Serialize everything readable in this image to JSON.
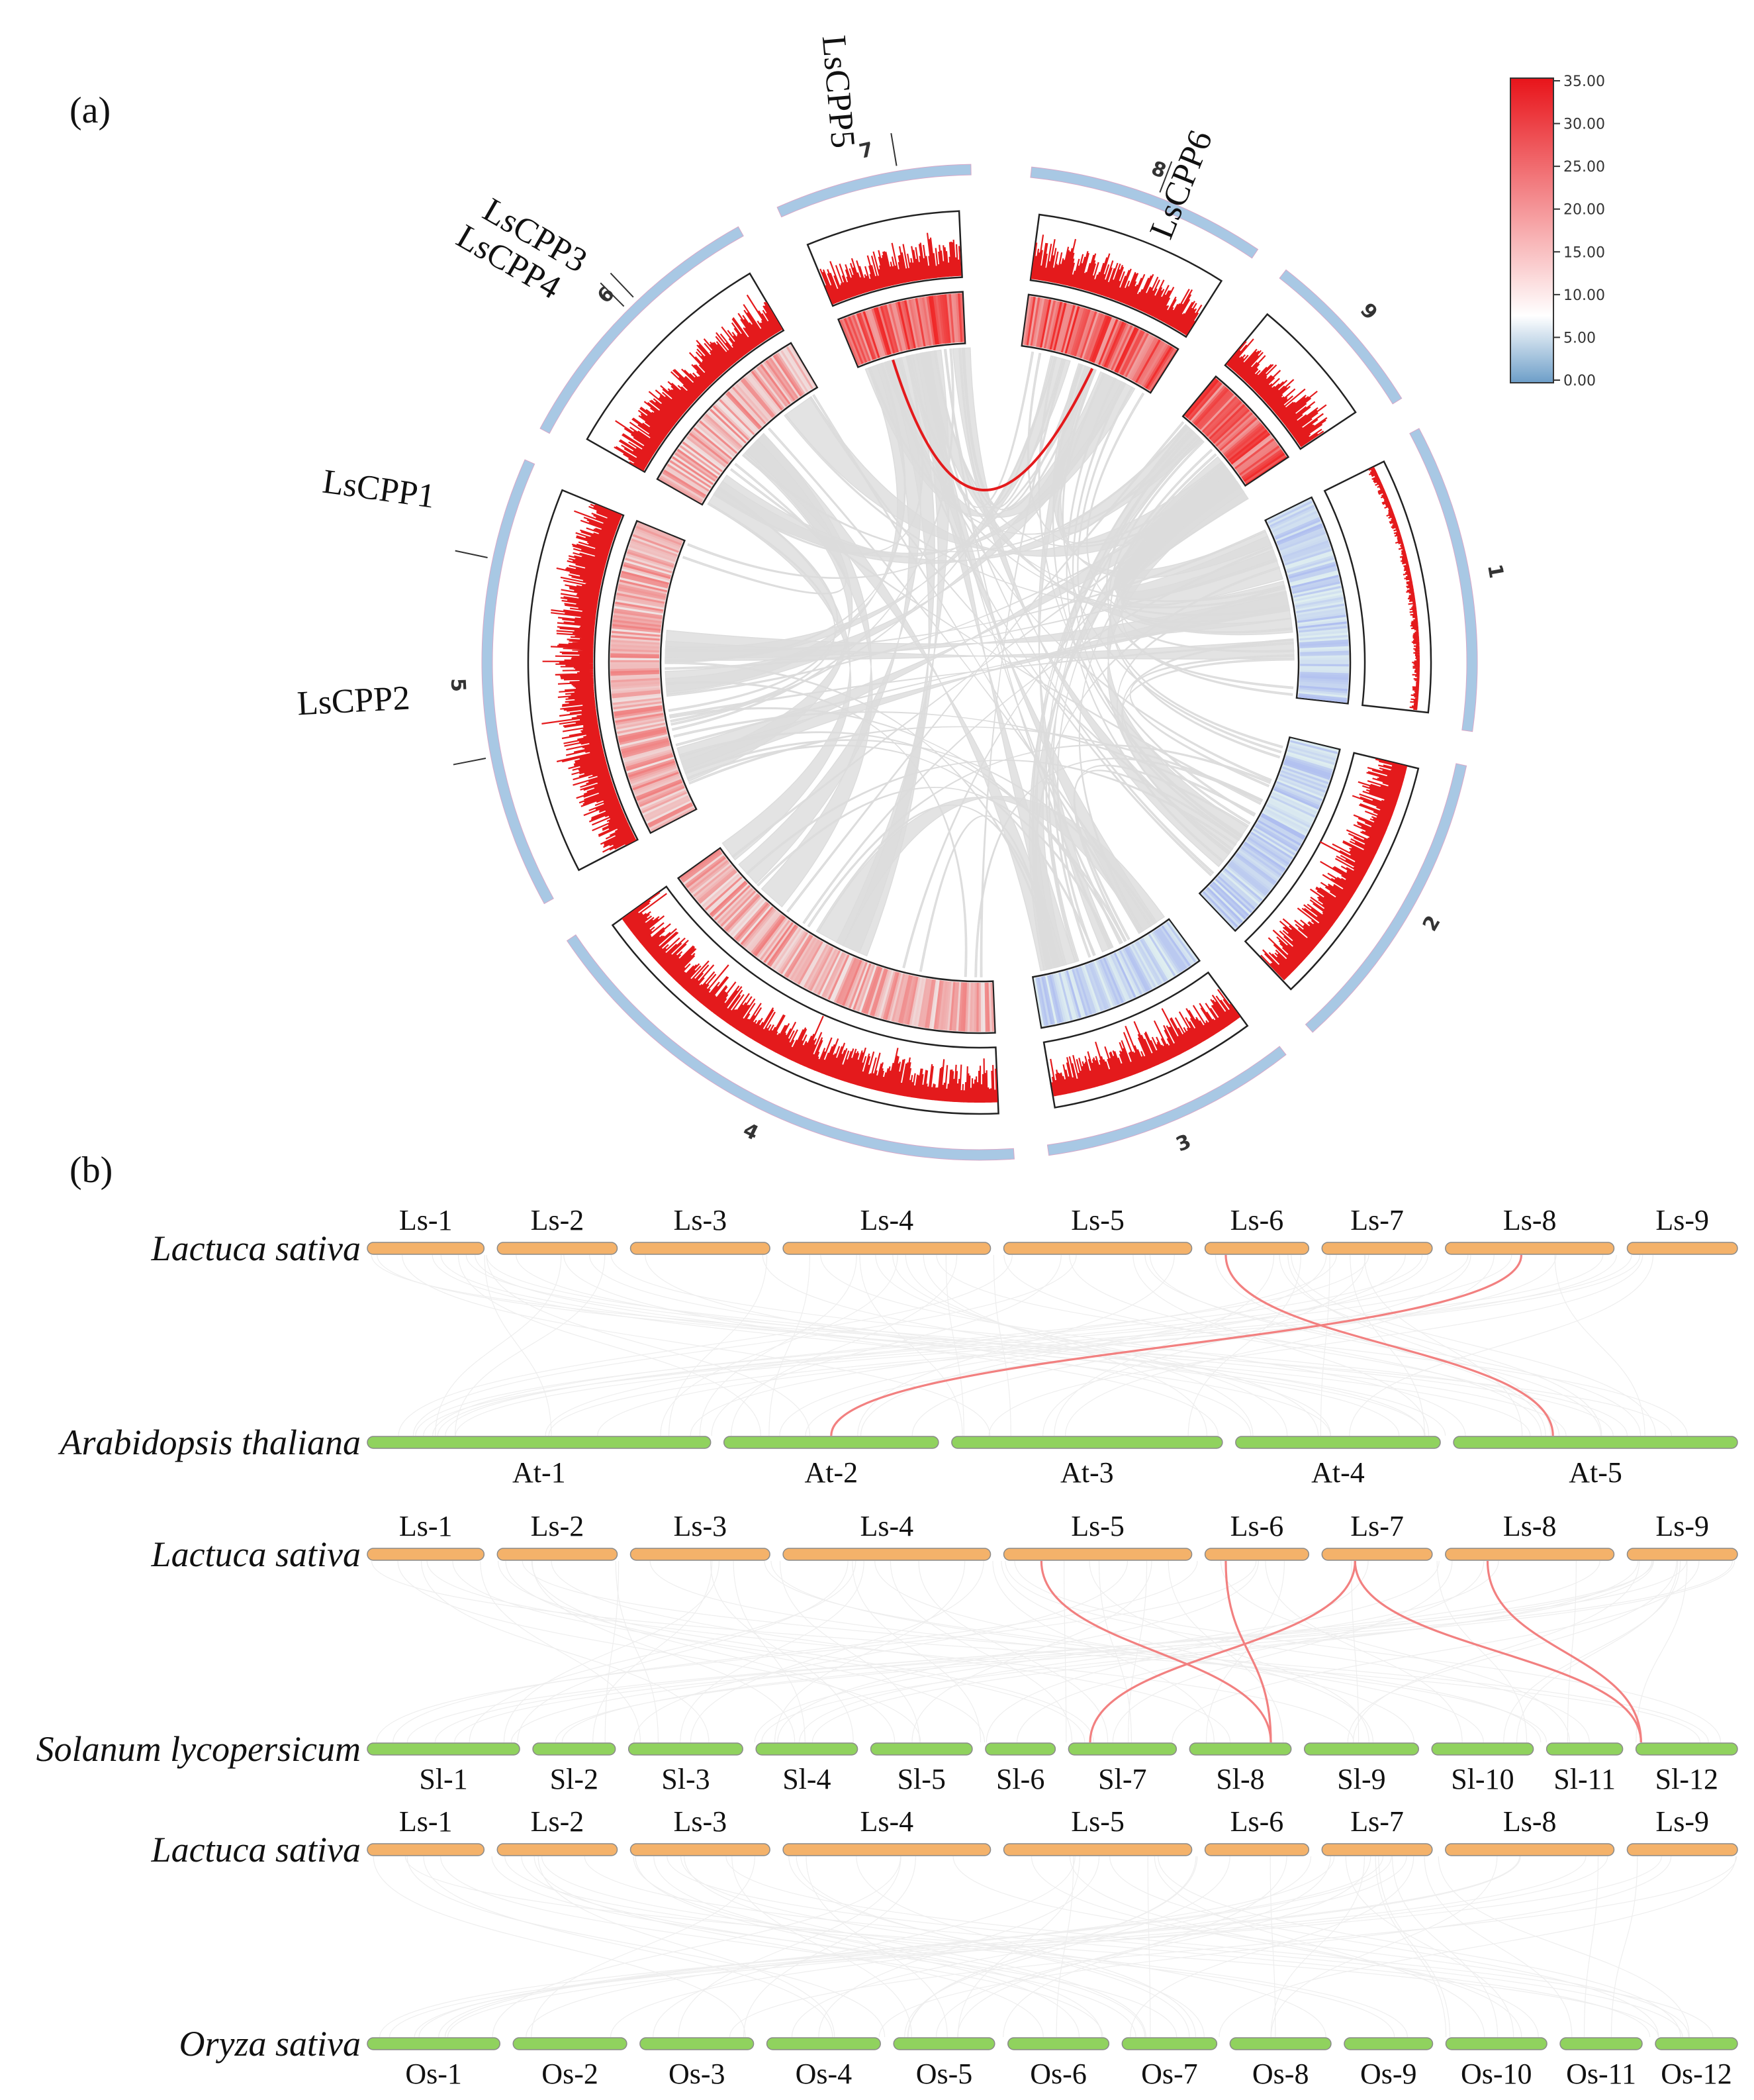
{
  "panel_a": {
    "label": "(a)",
    "chromosomes": [
      {
        "name": "1",
        "start": 60,
        "end": 97
      },
      {
        "name": "2",
        "start": 101,
        "end": 137
      },
      {
        "name": "3",
        "start": 142,
        "end": 171
      },
      {
        "name": "4",
        "start": 176,
        "end": 237
      },
      {
        "name": "5",
        "start": 242,
        "end": 293
      },
      {
        "name": "6",
        "start": 297,
        "end": 331
      },
      {
        "name": "7",
        "start": 335,
        "end": 360
      },
      {
        "name": "8",
        "start": 6,
        "end": 52
      },
      {
        "name": "9",
        "start": 56,
        "end": 58
      }
    ],
    "gene_labels": [
      {
        "name": "LsCPP5",
        "angle": 349
      },
      {
        "name": "LsCPP6",
        "angle": 20
      },
      {
        "name": "LsCPP3",
        "angle": 315
      },
      {
        "name": "LsCPP4",
        "angle": 316
      },
      {
        "name": "LsCPP1",
        "angle": 282
      },
      {
        "name": "LsCPP2",
        "angle": 259
      }
    ],
    "legend": {
      "ticks": [
        "35.00",
        "30.00",
        "25.00",
        "20.00",
        "15.00",
        "10.00",
        "5.00",
        "0.00"
      ],
      "low_color": "#6d9ec8",
      "mid_color": "#ffffff",
      "high_color": "#e8141a"
    },
    "colors": {
      "ideogram": "#a8c8e4",
      "density": "#e41a1c",
      "links": "#dcdcdc",
      "highlight_link": "#e41a1c"
    }
  },
  "panel_b": {
    "label": "(b)",
    "ls_chromosomes": [
      "Ls-1",
      "Ls-2",
      "Ls-3",
      "Ls-4",
      "Ls-5",
      "Ls-6",
      "Ls-7",
      "Ls-8",
      "Ls-9"
    ],
    "comparisons": [
      {
        "top_species": "Lactuca sativa",
        "bottom_species": "Arabidopsis thaliana",
        "bottom_chromosomes": [
          "At-1",
          "At-2",
          "At-3",
          "At-4",
          "At-5"
        ]
      },
      {
        "top_species": "Lactuca sativa",
        "bottom_species": "Solanum lycopersicum",
        "bottom_chromosomes": [
          "Sl-1",
          "Sl-2",
          "Sl-3",
          "Sl-4",
          "Sl-5",
          "Sl-6",
          "Sl-7",
          "Sl-8",
          "Sl-9",
          "Sl-10",
          "Sl-11",
          "Sl-12"
        ]
      },
      {
        "top_species": "Lactuca sativa",
        "bottom_species": "Oryza sativa",
        "bottom_chromosomes": [
          "Os-1",
          "Os-2",
          "Os-3",
          "Os-4",
          "Os-5",
          "Os-6",
          "Os-7",
          "Os-8",
          "Os-9",
          "Os-10",
          "Os-11",
          "Os-12"
        ]
      }
    ],
    "colors": {
      "top_bar": "#f4b26a",
      "bottom_bar": "#90d25e",
      "background_links": "#eeeeee",
      "highlight_links": "#f28080"
    }
  }
}
